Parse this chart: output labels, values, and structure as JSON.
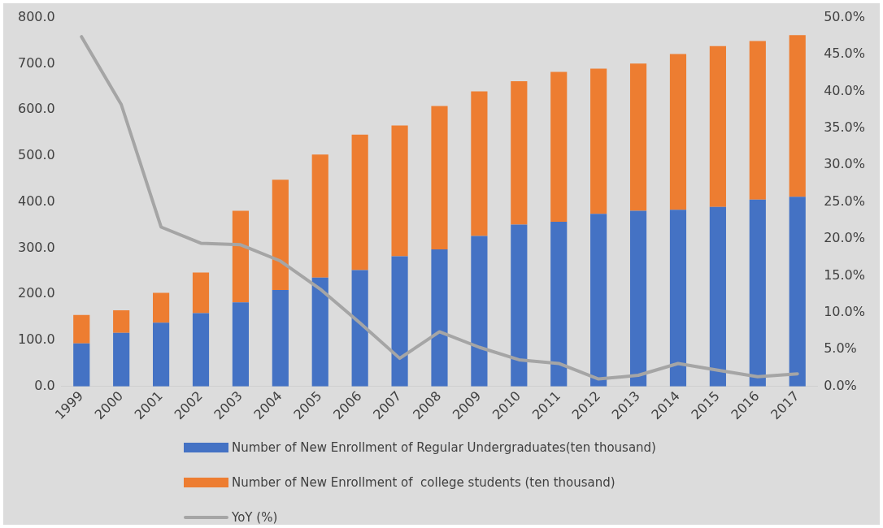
{
  "chart_data": {
    "type": "bar",
    "stacked": true,
    "legend": "bottom",
    "grid": false,
    "marker": "none",
    "categories": [
      "1999",
      "2000",
      "2001",
      "2002",
      "2003",
      "2004",
      "2005",
      "2006",
      "2007",
      "2008",
      "2009",
      "2010",
      "2011",
      "2012",
      "2013",
      "2014",
      "2015",
      "2016",
      "2017"
    ],
    "series": [
      {
        "name": "Number of New Enrollment of Regular Undergraduates(ten thousand)",
        "color": "#4472c4",
        "values": [
          93,
          116,
          138,
          159,
          182,
          209,
          236,
          252,
          282,
          297,
          326,
          351,
          357,
          374,
          381,
          383,
          389,
          405,
          411
        ]
      },
      {
        "name": "Number of New Enrollment of  college students (ten thousand)",
        "color": "#ed7d31",
        "values": [
          62,
          49,
          65,
          88,
          199,
          239,
          267,
          294,
          284,
          311,
          314,
          311,
          325,
          315,
          319,
          338,
          349,
          344,
          351
        ]
      },
      {
        "name": "YoY (%)",
        "type": "line",
        "axis": "y2",
        "color": "#a5a5a5",
        "values": [
          47.4,
          38.2,
          21.6,
          19.4,
          19.2,
          17.0,
          13.2,
          8.6,
          3.8,
          7.4,
          5.3,
          3.6,
          3.1,
          1.0,
          1.5,
          3.1,
          2.2,
          1.3,
          1.7
        ]
      }
    ],
    "ylim": [
      0,
      800
    ],
    "yticks": [
      {
        "value": 0,
        "label": "0.0"
      },
      {
        "value": 100,
        "label": "100.0"
      },
      {
        "value": 200,
        "label": "200.0"
      },
      {
        "value": 300,
        "label": "300.0"
      },
      {
        "value": 400,
        "label": "400.0"
      },
      {
        "value": 500,
        "label": "500.0"
      },
      {
        "value": 600,
        "label": "600.0"
      },
      {
        "value": 700,
        "label": "700.0"
      },
      {
        "value": 800,
        "label": "800.0"
      }
    ],
    "y2lim": [
      0,
      50
    ],
    "y2ticks": [
      {
        "value": 0,
        "label": "0.0%"
      },
      {
        "value": 5,
        "label": "5.0%"
      },
      {
        "value": 10,
        "label": "10.0%"
      },
      {
        "value": 15,
        "label": "15.0%"
      },
      {
        "value": 20,
        "label": "20.0%"
      },
      {
        "value": 25,
        "label": "25.0%"
      },
      {
        "value": 30,
        "label": "30.0%"
      },
      {
        "value": 35,
        "label": "35.0%"
      },
      {
        "value": 40,
        "label": "40.0%"
      },
      {
        "value": 45,
        "label": "45.0%"
      },
      {
        "value": 50,
        "label": "50.0%"
      }
    ]
  }
}
